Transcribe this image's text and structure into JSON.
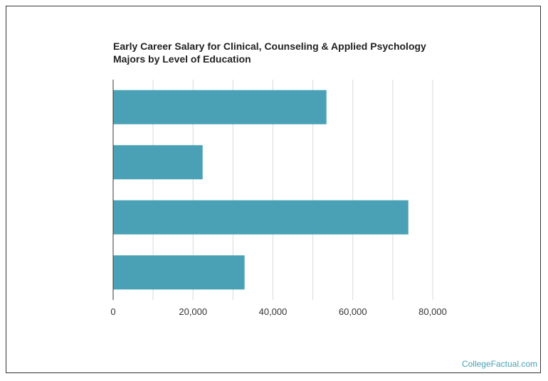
{
  "chart_data": {
    "type": "bar",
    "orientation": "horizontal",
    "title_lines": [
      "Early Career Salary for Clinical, Counseling & Applied Psychology",
      "Majors by Level of Education"
    ],
    "categories": [
      "",
      "",
      "",
      ""
    ],
    "values": [
      53400,
      22400,
      73900,
      32900
    ],
    "xlim": [
      0,
      80000
    ],
    "x_ticks": [
      0,
      20000,
      40000,
      60000,
      80000
    ],
    "x_tick_labels": [
      "0",
      "20,000",
      "40,000",
      "60,000",
      "80,000"
    ],
    "grid": true,
    "bar_color": "#4aa1b5",
    "grid_color": "#d9d9d9",
    "legend": "none"
  },
  "credit": "CollegeFactual.com"
}
